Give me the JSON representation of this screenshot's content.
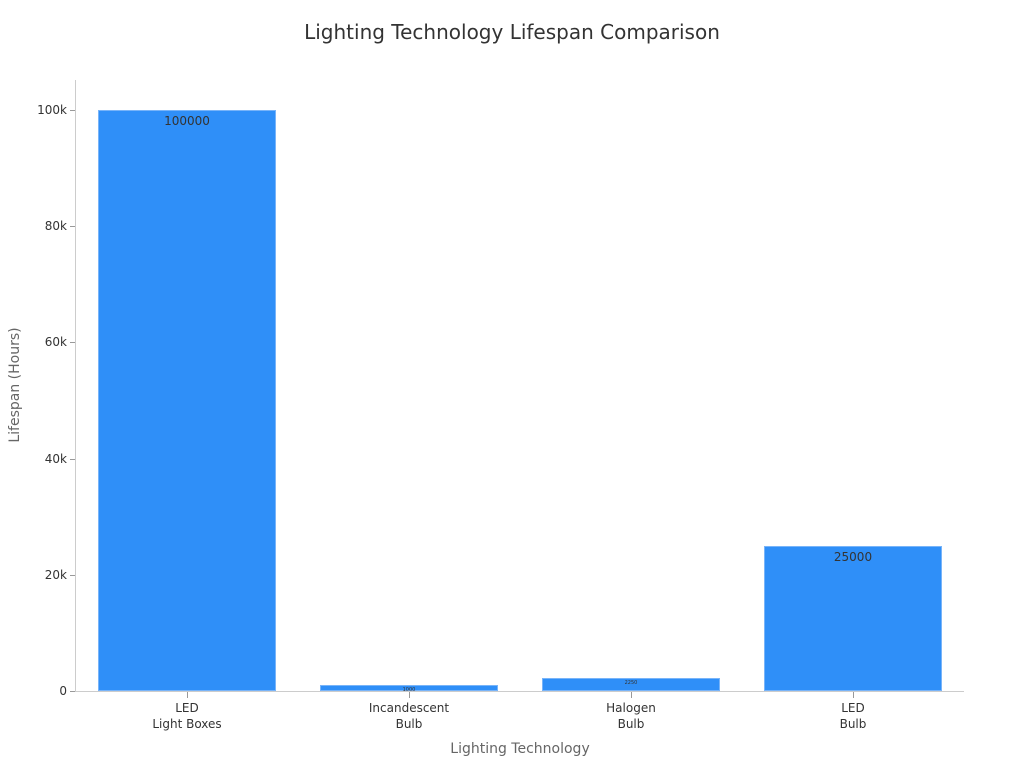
{
  "chart_data": {
    "type": "bar",
    "title": "Lighting Technology Lifespan Comparison",
    "xlabel": "Lighting Technology",
    "ylabel": "Lifespan (Hours)",
    "categories": [
      "LED Light Boxes",
      "Incandescent Bulb",
      "Halogen Bulb",
      "LED Bulb"
    ],
    "category_lines": [
      [
        "LED",
        "Light Boxes"
      ],
      [
        "Incandescent",
        "Bulb"
      ],
      [
        "Halogen",
        "Bulb"
      ],
      [
        "LED",
        "Bulb"
      ]
    ],
    "values": [
      100000,
      1000,
      2250,
      25000
    ],
    "value_labels": [
      "100000",
      "1000",
      "2250",
      "25000"
    ],
    "ylim": [
      0,
      105000
    ],
    "yticks": [
      0,
      20000,
      40000,
      60000,
      80000,
      100000
    ],
    "ytick_labels": [
      "0",
      "20k",
      "40k",
      "60k",
      "80k",
      "100k"
    ],
    "grid": false,
    "legend": "none",
    "bar_color": "#2f8ff8"
  }
}
